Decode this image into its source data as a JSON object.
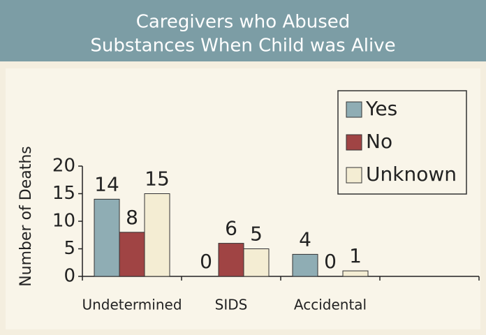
{
  "chart_data": {
    "type": "bar",
    "title": [
      "Caregivers who Abused",
      "Substances When Child was Alive"
    ],
    "y_label": "Number of Deaths",
    "categories": [
      "Undetermined",
      "SIDS",
      "Accidental",
      null
    ],
    "series": [
      {
        "name": "Yes",
        "color": "#8fadb4",
        "values": [
          14,
          0,
          4,
          null
        ]
      },
      {
        "name": "No",
        "color": "#a04444",
        "values": [
          8,
          6,
          0,
          null
        ]
      },
      {
        "name": "Unknown",
        "color": "#f4edd3",
        "values": [
          15,
          5,
          1,
          null
        ]
      }
    ],
    "ylim": [
      0,
      20
    ],
    "yticks": [
      0,
      5,
      10,
      15,
      20
    ],
    "legend": "upper right"
  }
}
